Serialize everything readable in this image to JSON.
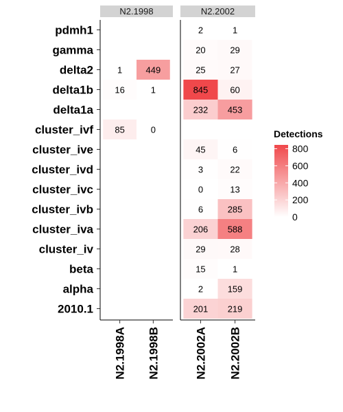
{
  "chart_data": {
    "type": "heatmap",
    "rows": [
      "pdmh1",
      "gamma",
      "delta2",
      "delta1b",
      "delta1a",
      "cluster_ivf",
      "cluster_ive",
      "cluster_ivd",
      "cluster_ivc",
      "cluster_ivb",
      "cluster_iva",
      "cluster_iv",
      "beta",
      "alpha",
      "2010.1"
    ],
    "facets": [
      {
        "name": "N2.1998",
        "columns": [
          "N2.1998A",
          "N2.1998B"
        ],
        "values": [
          [
            null,
            null
          ],
          [
            null,
            null
          ],
          [
            1,
            449
          ],
          [
            16,
            1
          ],
          [
            null,
            null
          ],
          [
            85,
            0
          ],
          [
            null,
            null
          ],
          [
            null,
            null
          ],
          [
            null,
            null
          ],
          [
            null,
            null
          ],
          [
            null,
            null
          ],
          [
            null,
            null
          ],
          [
            null,
            null
          ],
          [
            null,
            null
          ],
          [
            null,
            null
          ]
        ]
      },
      {
        "name": "N2.2002",
        "columns": [
          "N2.2002A",
          "N2.2002B"
        ],
        "values": [
          [
            2,
            1
          ],
          [
            20,
            29
          ],
          [
            25,
            27
          ],
          [
            845,
            60
          ],
          [
            232,
            453
          ],
          [
            null,
            null
          ],
          [
            45,
            6
          ],
          [
            3,
            22
          ],
          [
            0,
            13
          ],
          [
            6,
            285
          ],
          [
            206,
            588
          ],
          [
            29,
            28
          ],
          [
            15,
            1
          ],
          [
            2,
            159
          ],
          [
            201,
            219
          ]
        ]
      }
    ],
    "legend": {
      "title": "Detections",
      "ticks": [
        800,
        600,
        400,
        200,
        0
      ],
      "range": [
        0,
        845
      ],
      "low_color": "#ffffff",
      "high_color": "#f0484b",
      "placement": "right"
    }
  }
}
